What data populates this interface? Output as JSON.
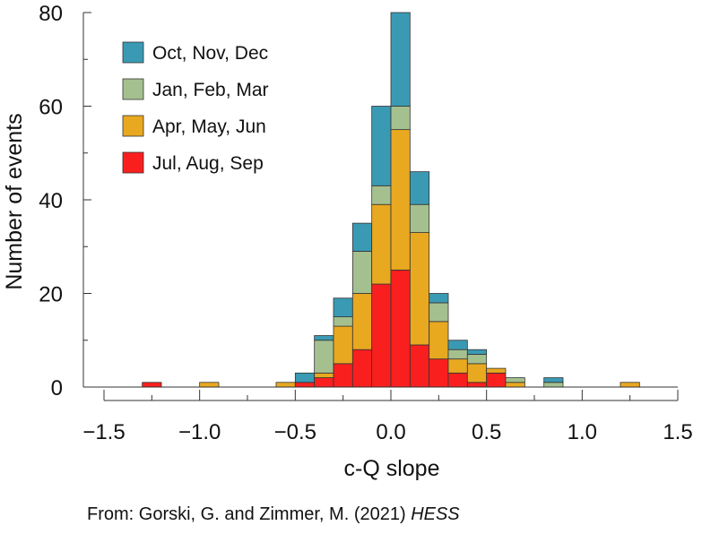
{
  "chart_data": {
    "type": "bar",
    "stacked": true,
    "xlabel": "c-Q slope",
    "ylabel": "Number of events",
    "xlim": [
      -1.5,
      1.5
    ],
    "ylim": [
      0,
      80
    ],
    "x_ticks": [
      -1.5,
      -1.0,
      -0.5,
      0.0,
      0.5,
      1.0,
      1.5
    ],
    "x_tick_labels": [
      "−1.5",
      "−1.0",
      "−0.5",
      "0.0",
      "0.5",
      "1.0",
      "1.5"
    ],
    "y_ticks": [
      0,
      20,
      40,
      60,
      80
    ],
    "y_tick_labels": [
      "0",
      "20",
      "40",
      "60",
      "80"
    ],
    "bin_width": 0.1,
    "bin_starts": [
      -1.3,
      -1.0,
      -0.6,
      -0.5,
      -0.4,
      -0.3,
      -0.2,
      -0.1,
      0.0,
      0.1,
      0.2,
      0.3,
      0.4,
      0.5,
      0.6,
      0.8,
      1.2
    ],
    "legend_position": "top-left",
    "series": [
      {
        "name": "Jul, Aug, Sep",
        "color": "#f91f1f",
        "values": [
          1,
          0,
          0,
          1,
          2,
          5,
          8,
          22,
          25,
          9,
          6,
          3,
          1,
          3,
          0,
          0,
          0
        ]
      },
      {
        "name": "Apr, May, Jun",
        "color": "#e8a820",
        "values": [
          0,
          1,
          1,
          0,
          1,
          8,
          12,
          17,
          30,
          24,
          8,
          3,
          4,
          1,
          1,
          0,
          1
        ]
      },
      {
        "name": "Jan, Feb, Mar",
        "color": "#a5c08f",
        "values": [
          0,
          0,
          0,
          0,
          7,
          2,
          9,
          4,
          5,
          6,
          4,
          2,
          2,
          0,
          1,
          1,
          0
        ]
      },
      {
        "name": "Oct, Nov, Dec",
        "color": "#3a9ab3",
        "values": [
          0,
          0,
          0,
          2,
          1,
          4,
          6,
          17,
          20,
          7,
          2,
          2,
          1,
          0,
          0,
          1,
          0
        ]
      }
    ],
    "legend_order": [
      "Oct, Nov, Dec",
      "Jan, Feb, Mar",
      "Apr, May, Jun",
      "Jul, Aug, Sep"
    ]
  },
  "credit": {
    "text": "From: Gorski, G. and Zimmer, M. (2021) ",
    "journal": "HESS"
  }
}
